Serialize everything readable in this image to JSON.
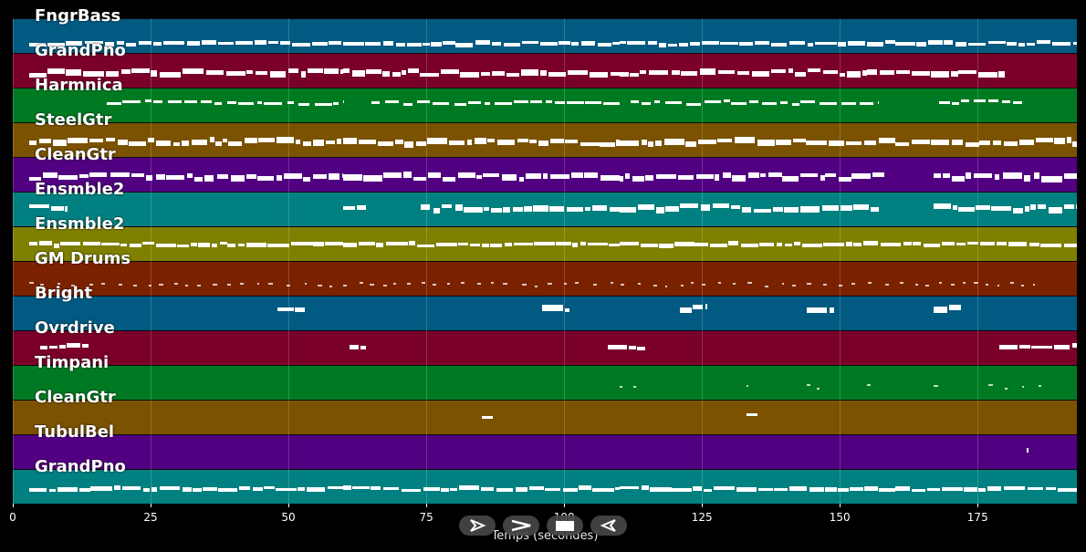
{
  "xaxis": {
    "label": "Temps (secondes)",
    "ticks": [
      "0",
      "25",
      "50",
      "75",
      "100",
      "125",
      "150",
      "175"
    ],
    "tick_values": [
      0,
      25,
      50,
      75,
      100,
      125,
      150,
      175
    ],
    "range": [
      0,
      193
    ]
  },
  "controls": [
    {
      "name": "play-button",
      "icon": "play-outline-icon"
    },
    {
      "name": "forward-button",
      "icon": "chevron-right-icon"
    },
    {
      "name": "stop-button",
      "icon": "stop-square-icon"
    },
    {
      "name": "rewind-button",
      "icon": "reverse-outline-icon"
    }
  ],
  "tracks": [
    {
      "label": "FngrBass",
      "color": "#005a82",
      "segments": [
        [
          3,
          60
        ],
        [
          60,
          110
        ],
        [
          110,
          160
        ],
        [
          160,
          193
        ]
      ],
      "pitch": 0.7,
      "density": "dense"
    },
    {
      "label": "GrandPno",
      "color": "#7a002a",
      "segments": [
        [
          3,
          60
        ],
        [
          60,
          110
        ],
        [
          110,
          155
        ],
        [
          155,
          180
        ]
      ],
      "pitch": 0.55,
      "density": "chord"
    },
    {
      "label": "Harmnica",
      "color": "#007a22",
      "segments": [
        [
          17,
          60
        ],
        [
          65,
          110
        ],
        [
          112,
          157
        ],
        [
          168,
          183
        ]
      ],
      "pitch": 0.4,
      "density": "sparse"
    },
    {
      "label": "SteelGtr",
      "color": "#7a5200",
      "segments": [
        [
          3,
          60
        ],
        [
          60,
          110
        ],
        [
          110,
          160
        ],
        [
          160,
          193
        ]
      ],
      "pitch": 0.55,
      "density": "chord"
    },
    {
      "label": "CleanGtr",
      "color": "#520082",
      "segments": [
        [
          3,
          60
        ],
        [
          60,
          110
        ],
        [
          110,
          158
        ],
        [
          167,
          193
        ]
      ],
      "pitch": 0.55,
      "density": "chord"
    },
    {
      "label": "Ensmble2",
      "color": "#008080",
      "segments": [
        [
          3,
          10
        ],
        [
          60,
          64
        ],
        [
          74,
          110
        ],
        [
          110,
          157
        ],
        [
          167,
          193
        ]
      ],
      "pitch": 0.45,
      "density": "chord"
    },
    {
      "label": "Ensmble2",
      "color": "#7f7f00",
      "segments": [
        [
          3,
          60
        ],
        [
          60,
          110
        ],
        [
          110,
          160
        ],
        [
          160,
          193
        ]
      ],
      "pitch": 0.5,
      "density": "dense"
    },
    {
      "label": "GM Drums",
      "color": "#7a2200",
      "segments": [
        [
          3,
          186
        ]
      ],
      "pitch": 0.65,
      "density": "drums"
    },
    {
      "label": "Bright",
      "color": "#005a82",
      "segments": [
        [
          48,
          53
        ],
        [
          96,
          101
        ],
        [
          121,
          126
        ],
        [
          144,
          149
        ],
        [
          167,
          172
        ]
      ],
      "pitch": 0.35,
      "density": "chord"
    },
    {
      "label": "Ovrdrive",
      "color": "#7a002a",
      "segments": [
        [
          5,
          14
        ],
        [
          61,
          64
        ],
        [
          108,
          115
        ],
        [
          179,
          193
        ]
      ],
      "pitch": 0.45,
      "density": "dense"
    },
    {
      "label": "Timpani",
      "color": "#007a22",
      "segments": [
        [
          110,
          113
        ],
        [
          133,
          135
        ],
        [
          144,
          147
        ],
        [
          155,
          156
        ],
        [
          167,
          170
        ],
        [
          177,
          178
        ],
        [
          180,
          181
        ],
        [
          183,
          184
        ],
        [
          186,
          187
        ]
      ],
      "pitch": 0.6,
      "density": "drums"
    },
    {
      "label": "CleanGtr",
      "color": "#7a5200",
      "segments": [
        [
          85,
          87
        ],
        [
          133,
          135
        ]
      ],
      "pitch": 0.45,
      "density": "dense"
    },
    {
      "label": "TubulBel",
      "color": "#520082",
      "segments": [
        [
          183.9,
          184.1
        ]
      ],
      "pitch": 0.4,
      "density": "dense"
    },
    {
      "label": "GrandPno",
      "color": "#008080",
      "segments": [
        [
          3,
          60
        ],
        [
          60,
          110
        ],
        [
          110,
          160
        ],
        [
          160,
          193
        ]
      ],
      "pitch": 0.55,
      "density": "dense"
    }
  ]
}
